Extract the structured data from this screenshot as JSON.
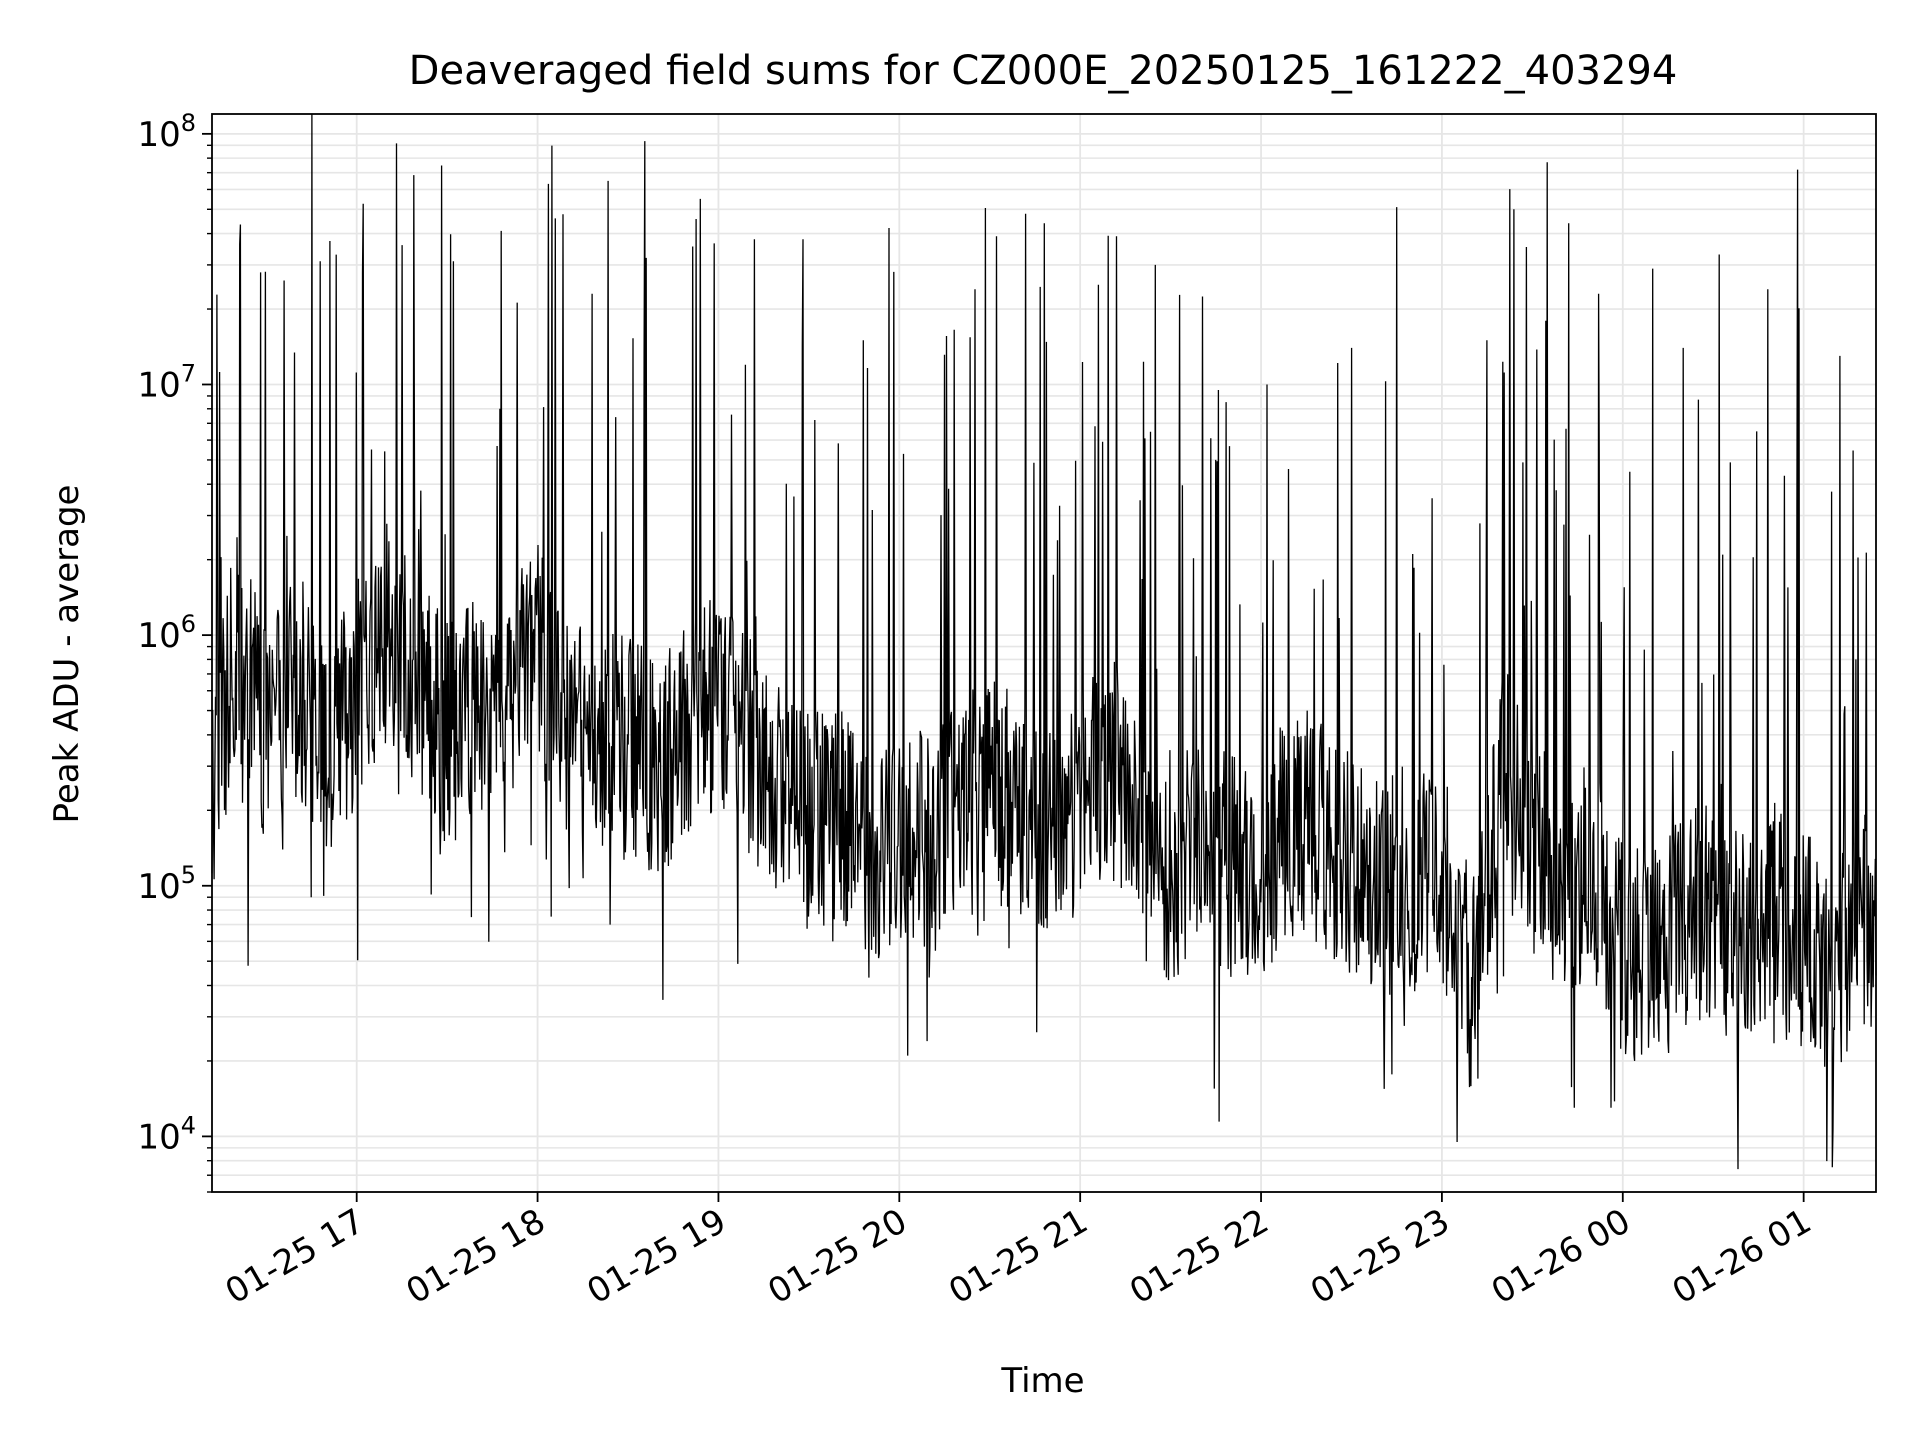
{
  "chart_data": {
    "type": "line",
    "title": "Deaveraged field sums for CZ000E_20250125_161222_403294",
    "xlabel": "Time",
    "ylabel": "Peak ADU - average",
    "yscale": "log",
    "ylim": [
      6000,
      120000000
    ],
    "xlim": [
      "2025-01-25 16:12",
      "2025-01-26 01:24"
    ],
    "x_ticks": [
      {
        "t": "2025-01-25 17:00",
        "label": "01-25 17"
      },
      {
        "t": "2025-01-25 18:00",
        "label": "01-25 18"
      },
      {
        "t": "2025-01-25 19:00",
        "label": "01-25 19"
      },
      {
        "t": "2025-01-25 20:00",
        "label": "01-25 20"
      },
      {
        "t": "2025-01-25 21:00",
        "label": "01-25 21"
      },
      {
        "t": "2025-01-25 22:00",
        "label": "01-25 22"
      },
      {
        "t": "2025-01-25 23:00",
        "label": "01-25 23"
      },
      {
        "t": "2025-01-26 00:00",
        "label": "01-26 00"
      },
      {
        "t": "2025-01-26 01:00",
        "label": "01-26 01"
      }
    ],
    "y_ticks": [
      {
        "value": 10000,
        "base": "10",
        "exp": "4"
      },
      {
        "value": 100000,
        "base": "10",
        "exp": "5"
      },
      {
        "value": 1000000,
        "base": "10",
        "exp": "6"
      },
      {
        "value": 10000000,
        "base": "10",
        "exp": "7"
      },
      {
        "value": 100000000,
        "base": "10",
        "exp": "8"
      }
    ],
    "grid": true,
    "line_color": "#000000",
    "grid_color": "#e6e6e6",
    "series": [
      {
        "x": [
          "2025-01-25 16:12",
          "2025-01-25 16:20",
          "2025-01-25 16:30",
          "2025-01-25 16:40",
          "2025-01-25 16:50",
          "2025-01-25 17:00",
          "2025-01-25 17:10",
          "2025-01-25 17:20",
          "2025-01-25 17:30",
          "2025-01-25 17:40",
          "2025-01-25 17:50",
          "2025-01-25 18:00",
          "2025-01-25 18:10",
          "2025-01-25 18:20",
          "2025-01-25 18:30",
          "2025-01-25 18:40",
          "2025-01-25 18:50",
          "2025-01-25 19:00",
          "2025-01-25 19:10",
          "2025-01-25 19:20",
          "2025-01-25 19:30",
          "2025-01-25 19:40",
          "2025-01-25 19:50",
          "2025-01-25 20:00",
          "2025-01-25 20:10",
          "2025-01-25 20:20",
          "2025-01-25 20:30",
          "2025-01-25 20:40",
          "2025-01-25 20:50",
          "2025-01-25 21:00",
          "2025-01-25 21:10",
          "2025-01-25 21:20",
          "2025-01-25 21:30",
          "2025-01-25 21:40",
          "2025-01-25 21:50",
          "2025-01-25 22:00",
          "2025-01-25 22:10",
          "2025-01-25 22:20",
          "2025-01-25 22:30",
          "2025-01-25 22:40",
          "2025-01-25 22:50",
          "2025-01-25 23:00",
          "2025-01-25 23:10",
          "2025-01-25 23:20",
          "2025-01-25 23:30",
          "2025-01-25 23:40",
          "2025-01-25 23:50",
          "2025-01-26 00:00",
          "2025-01-26 00:10",
          "2025-01-26 00:20",
          "2025-01-26 00:30",
          "2025-01-26 00:40",
          "2025-01-26 00:50",
          "2025-01-26 01:00",
          "2025-01-26 01:10",
          "2025-01-26 01:20"
        ],
        "values": [
          200000,
          1000000,
          400000,
          700000,
          300000,
          600000,
          1000000,
          700000,
          400000,
          500000,
          600000,
          800000,
          450000,
          400000,
          350000,
          300000,
          400000,
          600000,
          350000,
          250000,
          180000,
          200000,
          130000,
          150000,
          150000,
          200000,
          250000,
          200000,
          160000,
          250000,
          300000,
          220000,
          100000,
          150000,
          120000,
          110000,
          200000,
          160000,
          120000,
          100000,
          95000,
          110000,
          40000,
          300000,
          150000,
          90000,
          120000,
          60000,
          50000,
          70000,
          80000,
          60000,
          90000,
          60000,
          50000,
          70000
        ]
      }
    ],
    "peaks": [
      {
        "x": "2025-01-25 16:28",
        "y": 28000000
      },
      {
        "x": "2025-01-25 16:36",
        "y": 26000000
      },
      {
        "x": "2025-01-25 16:48",
        "y": 31000000
      },
      {
        "x": "2025-01-25 17:02",
        "y": 28000000
      },
      {
        "x": "2025-01-25 17:15",
        "y": 36000000
      },
      {
        "x": "2025-01-25 17:32",
        "y": 31000000
      },
      {
        "x": "2025-01-25 17:48",
        "y": 41000000
      },
      {
        "x": "2025-01-25 18:06",
        "y": 46000000
      },
      {
        "x": "2025-01-25 18:18",
        "y": 23000000
      },
      {
        "x": "2025-01-25 18:36",
        "y": 32000000
      },
      {
        "x": "2025-01-25 18:54",
        "y": 55000000
      },
      {
        "x": "2025-01-25 19:12",
        "y": 38000000
      },
      {
        "x": "2025-01-25 19:28",
        "y": 38000000
      },
      {
        "x": "2025-01-25 19:48",
        "y": 15000000
      },
      {
        "x": "2025-01-25 20:12",
        "y": 10000000
      },
      {
        "x": "2025-01-25 20:25",
        "y": 24000000
      },
      {
        "x": "2025-01-25 20:42",
        "y": 48000000
      },
      {
        "x": "2025-01-25 20:48",
        "y": 44000000
      },
      {
        "x": "2025-01-25 21:06",
        "y": 25000000
      },
      {
        "x": "2025-01-25 21:12",
        "y": 39000000
      },
      {
        "x": "2025-01-25 21:25",
        "y": 30000000
      },
      {
        "x": "2025-01-25 21:45",
        "y": 5000000
      },
      {
        "x": "2025-01-25 22:02",
        "y": 10000000
      },
      {
        "x": "2025-01-25 22:30",
        "y": 14000000
      },
      {
        "x": "2025-01-25 22:45",
        "y": 51000000
      },
      {
        "x": "2025-01-25 23:15",
        "y": 15000000
      },
      {
        "x": "2025-01-25 23:24",
        "y": 50000000
      },
      {
        "x": "2025-01-25 23:35",
        "y": 77000000
      },
      {
        "x": "2025-01-25 23:42",
        "y": 44000000
      },
      {
        "x": "2025-01-25 23:52",
        "y": 23000000
      },
      {
        "x": "2025-01-26 00:10",
        "y": 29000000
      },
      {
        "x": "2025-01-26 00:20",
        "y": 14000000
      },
      {
        "x": "2025-01-26 00:32",
        "y": 33000000
      },
      {
        "x": "2025-01-26 00:48",
        "y": 24000000
      },
      {
        "x": "2025-01-26 00:58",
        "y": 72000000
      },
      {
        "x": "2025-01-26 01:12",
        "y": 13000000
      }
    ],
    "troughs": [
      {
        "x": "2025-01-25 16:24",
        "y": 48000
      },
      {
        "x": "2025-01-25 16:45",
        "y": 90000
      },
      {
        "x": "2025-01-25 17:38",
        "y": 75000
      },
      {
        "x": "2025-01-25 18:24",
        "y": 70000
      },
      {
        "x": "2025-01-25 19:38",
        "y": 60000
      },
      {
        "x": "2025-01-25 19:50",
        "y": 43000
      },
      {
        "x": "2025-01-25 20:12",
        "y": 55000
      },
      {
        "x": "2025-01-25 21:22",
        "y": 50000
      },
      {
        "x": "2025-01-25 22:05",
        "y": 55000
      },
      {
        "x": "2025-01-25 23:05",
        "y": 9500
      },
      {
        "x": "2025-01-25 23:12",
        "y": 17000
      },
      {
        "x": "2025-01-25 23:44",
        "y": 13000
      },
      {
        "x": "2025-01-25 23:56",
        "y": 13000
      },
      {
        "x": "2025-01-26 00:04",
        "y": 20000
      },
      {
        "x": "2025-01-26 00:38",
        "y": 22000
      },
      {
        "x": "2025-01-26 01:20",
        "y": 28000
      }
    ]
  }
}
